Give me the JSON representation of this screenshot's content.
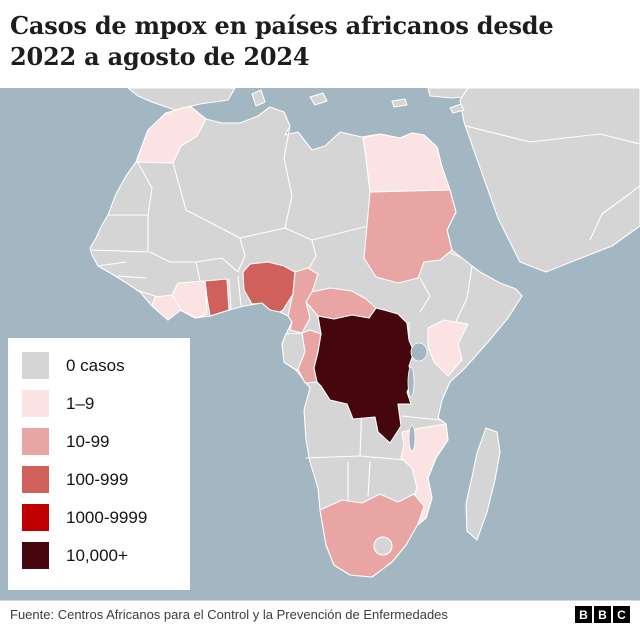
{
  "header": {
    "title": "Casos de mpox en países africanos desde 2022 a agosto de 2024",
    "title_lines": [
      "Casos de mpox en países africanos desde",
      "2022 a agosto de 2024"
    ]
  },
  "legend": {
    "items": [
      {
        "label": "0 casos",
        "color": "#d5d5d5"
      },
      {
        "label": "1–9",
        "color": "#fae3e2"
      },
      {
        "label": "10-99",
        "color": "#e9a5a3"
      },
      {
        "label": "100-999",
        "color": "#d0605c"
      },
      {
        "label": "1000-9999",
        "color": "#c00000"
      },
      {
        "label": "10,000+",
        "color": "#45060e"
      }
    ]
  },
  "map": {
    "ocean_color": "#a3b7c3",
    "land_color": "#d5d5d5",
    "border_color": "#ffffff"
  },
  "chart_data": {
    "type": "choropleth",
    "title": "Casos de mpox en países africanos desde 2022 a agosto de 2024",
    "region": "África",
    "unit": "casos de mpox",
    "categories": [
      "0 casos",
      "1–9",
      "10-99",
      "100-999",
      "1000-9999",
      "10,000+"
    ],
    "default_category": "0 casos",
    "countries": [
      {
        "id": "morocco",
        "name": "Marruecos",
        "category": "1–9"
      },
      {
        "id": "egypt",
        "name": "Egipto",
        "category": "1–9"
      },
      {
        "id": "sudan",
        "name": "Sudán",
        "category": "10-99"
      },
      {
        "id": "cote-divoire",
        "name": "Costa de Marfil",
        "category": "1–9"
      },
      {
        "id": "liberia",
        "name": "Liberia",
        "category": "1–9"
      },
      {
        "id": "ghana",
        "name": "Ghana",
        "category": "100-999"
      },
      {
        "id": "nigeria",
        "name": "Nigeria",
        "category": "100-999"
      },
      {
        "id": "cameroon",
        "name": "Camerún",
        "category": "10-99"
      },
      {
        "id": "central-african-republic",
        "name": "República Centroafricana",
        "category": "10-99"
      },
      {
        "id": "congo",
        "name": "República del Congo",
        "category": "10-99"
      },
      {
        "id": "drc",
        "name": "República Democrática del Congo",
        "category": "10,000+"
      },
      {
        "id": "kenya",
        "name": "Kenia",
        "category": "1–9"
      },
      {
        "id": "mozambique",
        "name": "Mozambique",
        "category": "1–9"
      },
      {
        "id": "south-africa",
        "name": "Sudáfrica",
        "category": "10-99"
      }
    ]
  },
  "footer": {
    "source": "Fuente: Centros Africanos para el Control y la Prevención de Enfermedades",
    "logo_letters": [
      "B",
      "B",
      "C"
    ]
  }
}
